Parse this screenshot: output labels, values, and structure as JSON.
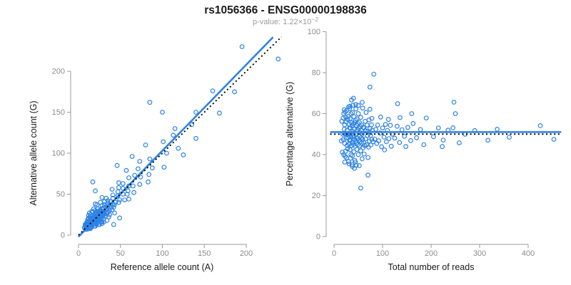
{
  "header": {
    "title": "rs1056366 - ENSG00000198836",
    "subtitle_main": "p-value: 1.22×10",
    "subtitle_exponent": "−2"
  },
  "colors": {
    "point": "#2d82e6",
    "fit_line": "#2d82e6",
    "dotted_line": "#000000",
    "axis": "#999999",
    "tick_label": "#8c8c8c",
    "axis_title": "#1a1a1a",
    "title": "#1a1a1a",
    "subtitle": "#9b9b9b"
  },
  "chart_data": {
    "type": "scatter",
    "title": "rs1056366 - ENSG00000198836",
    "subtitle": "p-value: 1.22×10^-2",
    "description": "Two-panel allele-specific expression plot. Shared underlying data: pairs of [reference_allele_count, alternative_allele_count]. Left panel plots ref vs alt with identity (dotted) and fitted (blue, slope~1.05) lines. Right panel plots total reads (ref+alt) vs percentage alternative (100*alt/total) with null line at 50 (dotted) and mean line at 51 (blue).",
    "points_ref_alt": [
      [
        8,
        7
      ],
      [
        7,
        9
      ],
      [
        10,
        7
      ],
      [
        9,
        9
      ],
      [
        12,
        8
      ],
      [
        8,
        12
      ],
      [
        12,
        10
      ],
      [
        10,
        12
      ],
      [
        14,
        10
      ],
      [
        10,
        14
      ],
      [
        13,
        12
      ],
      [
        16,
        10
      ],
      [
        10,
        16
      ],
      [
        13,
        14
      ],
      [
        16,
        12
      ],
      [
        12,
        16
      ],
      [
        15,
        14
      ],
      [
        19,
        11
      ],
      [
        11,
        19
      ],
      [
        15,
        15
      ],
      [
        10,
        9
      ],
      [
        10,
        11
      ],
      [
        14,
        9
      ],
      [
        9,
        14
      ],
      [
        11,
        14
      ],
      [
        15,
        12
      ],
      [
        12,
        17
      ],
      [
        13,
        13
      ],
      [
        12,
        12
      ],
      [
        14,
        14
      ],
      [
        14,
        8
      ],
      [
        8,
        13
      ],
      [
        8,
        11
      ],
      [
        17,
        14
      ],
      [
        14,
        17
      ],
      [
        17,
        15
      ],
      [
        15,
        17
      ],
      [
        19,
        14
      ],
      [
        14,
        19
      ],
      [
        18,
        16
      ],
      [
        16,
        18
      ],
      [
        21,
        14
      ],
      [
        14,
        21
      ],
      [
        20,
        16
      ],
      [
        16,
        20
      ],
      [
        20,
        17
      ],
      [
        17,
        20
      ],
      [
        23,
        15
      ],
      [
        15,
        23
      ],
      [
        20,
        19
      ],
      [
        19,
        20
      ],
      [
        22,
        18
      ],
      [
        18,
        22
      ],
      [
        24,
        17
      ],
      [
        17,
        24
      ],
      [
        22,
        20
      ],
      [
        20,
        22
      ],
      [
        24,
        19
      ],
      [
        19,
        24
      ],
      [
        22,
        22
      ],
      [
        28,
        16
      ],
      [
        16,
        29
      ],
      [
        24,
        21
      ],
      [
        20,
        11
      ],
      [
        12,
        21
      ],
      [
        18,
        17
      ],
      [
        24,
        13
      ],
      [
        14,
        25
      ],
      [
        21,
        20
      ],
      [
        27,
        16
      ],
      [
        17,
        28
      ],
      [
        12,
        20
      ],
      [
        21,
        13
      ],
      [
        12,
        24
      ],
      [
        25,
        13
      ],
      [
        13,
        27
      ],
      [
        28,
        14
      ],
      [
        19,
        25
      ],
      [
        25,
        21
      ],
      [
        21,
        25
      ],
      [
        27,
        20
      ],
      [
        20,
        27
      ],
      [
        25,
        23
      ],
      [
        23,
        25
      ],
      [
        27,
        22
      ],
      [
        22,
        27
      ],
      [
        30,
        20
      ],
      [
        20,
        30
      ],
      [
        27,
        24
      ],
      [
        24,
        27
      ],
      [
        29,
        23
      ],
      [
        23,
        29
      ],
      [
        27,
        26
      ],
      [
        26,
        27
      ],
      [
        29,
        25
      ],
      [
        25,
        29
      ],
      [
        32,
        23
      ],
      [
        23,
        32
      ],
      [
        29,
        27
      ],
      [
        27,
        29
      ],
      [
        31,
        26
      ],
      [
        26,
        31
      ],
      [
        29,
        29
      ],
      [
        36,
        22
      ],
      [
        22,
        37
      ],
      [
        31,
        28
      ],
      [
        28,
        32
      ],
      [
        34,
        26
      ],
      [
        42,
        13
      ],
      [
        18,
        32
      ],
      [
        34,
        18
      ],
      [
        20,
        38
      ],
      [
        30,
        16
      ],
      [
        33,
        28
      ],
      [
        29,
        33
      ],
      [
        35,
        28
      ],
      [
        28,
        36
      ],
      [
        34,
        31
      ],
      [
        32,
        34
      ],
      [
        37,
        30
      ],
      [
        31,
        37
      ],
      [
        35,
        34
      ],
      [
        34,
        36
      ],
      [
        40,
        31
      ],
      [
        31,
        41
      ],
      [
        39,
        34
      ],
      [
        35,
        39
      ],
      [
        38,
        37
      ],
      [
        42,
        34
      ],
      [
        35,
        42
      ],
      [
        41,
        37
      ],
      [
        38,
        41
      ],
      [
        43,
        37
      ],
      [
        37,
        25
      ],
      [
        26,
        40
      ],
      [
        43,
        27
      ],
      [
        28,
        46
      ],
      [
        33,
        45
      ],
      [
        20,
        54
      ],
      [
        49,
        21
      ],
      [
        17,
        65
      ],
      [
        44,
        40
      ],
      [
        41,
        45
      ],
      [
        48,
        40
      ],
      [
        41,
        49
      ],
      [
        49,
        43
      ],
      [
        47,
        48
      ],
      [
        55,
        43
      ],
      [
        47,
        53
      ],
      [
        53,
        50
      ],
      [
        48,
        58
      ],
      [
        58,
        50
      ],
      [
        53,
        57
      ],
      [
        59,
        54
      ],
      [
        53,
        63
      ],
      [
        66,
        52
      ],
      [
        60,
        60
      ],
      [
        40,
        56
      ],
      [
        60,
        44
      ],
      [
        48,
        64
      ],
      [
        46,
        85
      ],
      [
        65,
        60
      ],
      [
        60,
        70
      ],
      [
        73,
        62
      ],
      [
        67,
        73
      ],
      [
        74,
        71
      ],
      [
        71,
        81
      ],
      [
        84,
        74
      ],
      [
        73,
        90
      ],
      [
        88,
        82
      ],
      [
        85,
        93
      ],
      [
        102,
        83
      ],
      [
        80,
        110
      ],
      [
        64,
        96
      ],
      [
        83,
        65
      ],
      [
        57,
        79
      ],
      [
        105,
        100
      ],
      [
        101,
        114
      ],
      [
        119,
        106
      ],
      [
        113,
        122
      ],
      [
        115,
        130
      ],
      [
        85,
        162
      ],
      [
        140,
        118
      ],
      [
        135,
        135
      ],
      [
        140,
        150
      ],
      [
        168,
        149
      ],
      [
        160,
        176
      ],
      [
        186,
        175
      ],
      [
        195,
        230
      ],
      [
        238,
        215
      ],
      [
        100,
        150
      ],
      [
        125,
        98
      ]
    ],
    "left_panel": {
      "xlabel": "Reference allele count (A)",
      "ylabel": "Alternative allele count (G)",
      "xticks": [
        0,
        50,
        100,
        150,
        200
      ],
      "yticks": [
        0,
        50,
        100,
        150,
        200
      ],
      "xlim": [
        0,
        240
      ],
      "ylim": [
        0,
        245
      ],
      "identity_line": {
        "slope": 1,
        "intercept": 0,
        "style": "dotted-black"
      },
      "fit_line": {
        "slope": 1.05,
        "intercept": -2,
        "style": "solid-blue"
      }
    },
    "right_panel": {
      "xlabel": "Total number of reads",
      "ylabel": "Percentage alternative (G)",
      "xticks": [
        0,
        100,
        200,
        300,
        400
      ],
      "yticks": [
        0,
        20,
        40,
        60,
        80,
        100
      ],
      "xlim": [
        0,
        470
      ],
      "ylim": [
        0,
        100
      ],
      "null_line": {
        "value": 50,
        "style": "dotted-black"
      },
      "mean_line": {
        "value": 51,
        "style": "solid-blue"
      }
    }
  }
}
